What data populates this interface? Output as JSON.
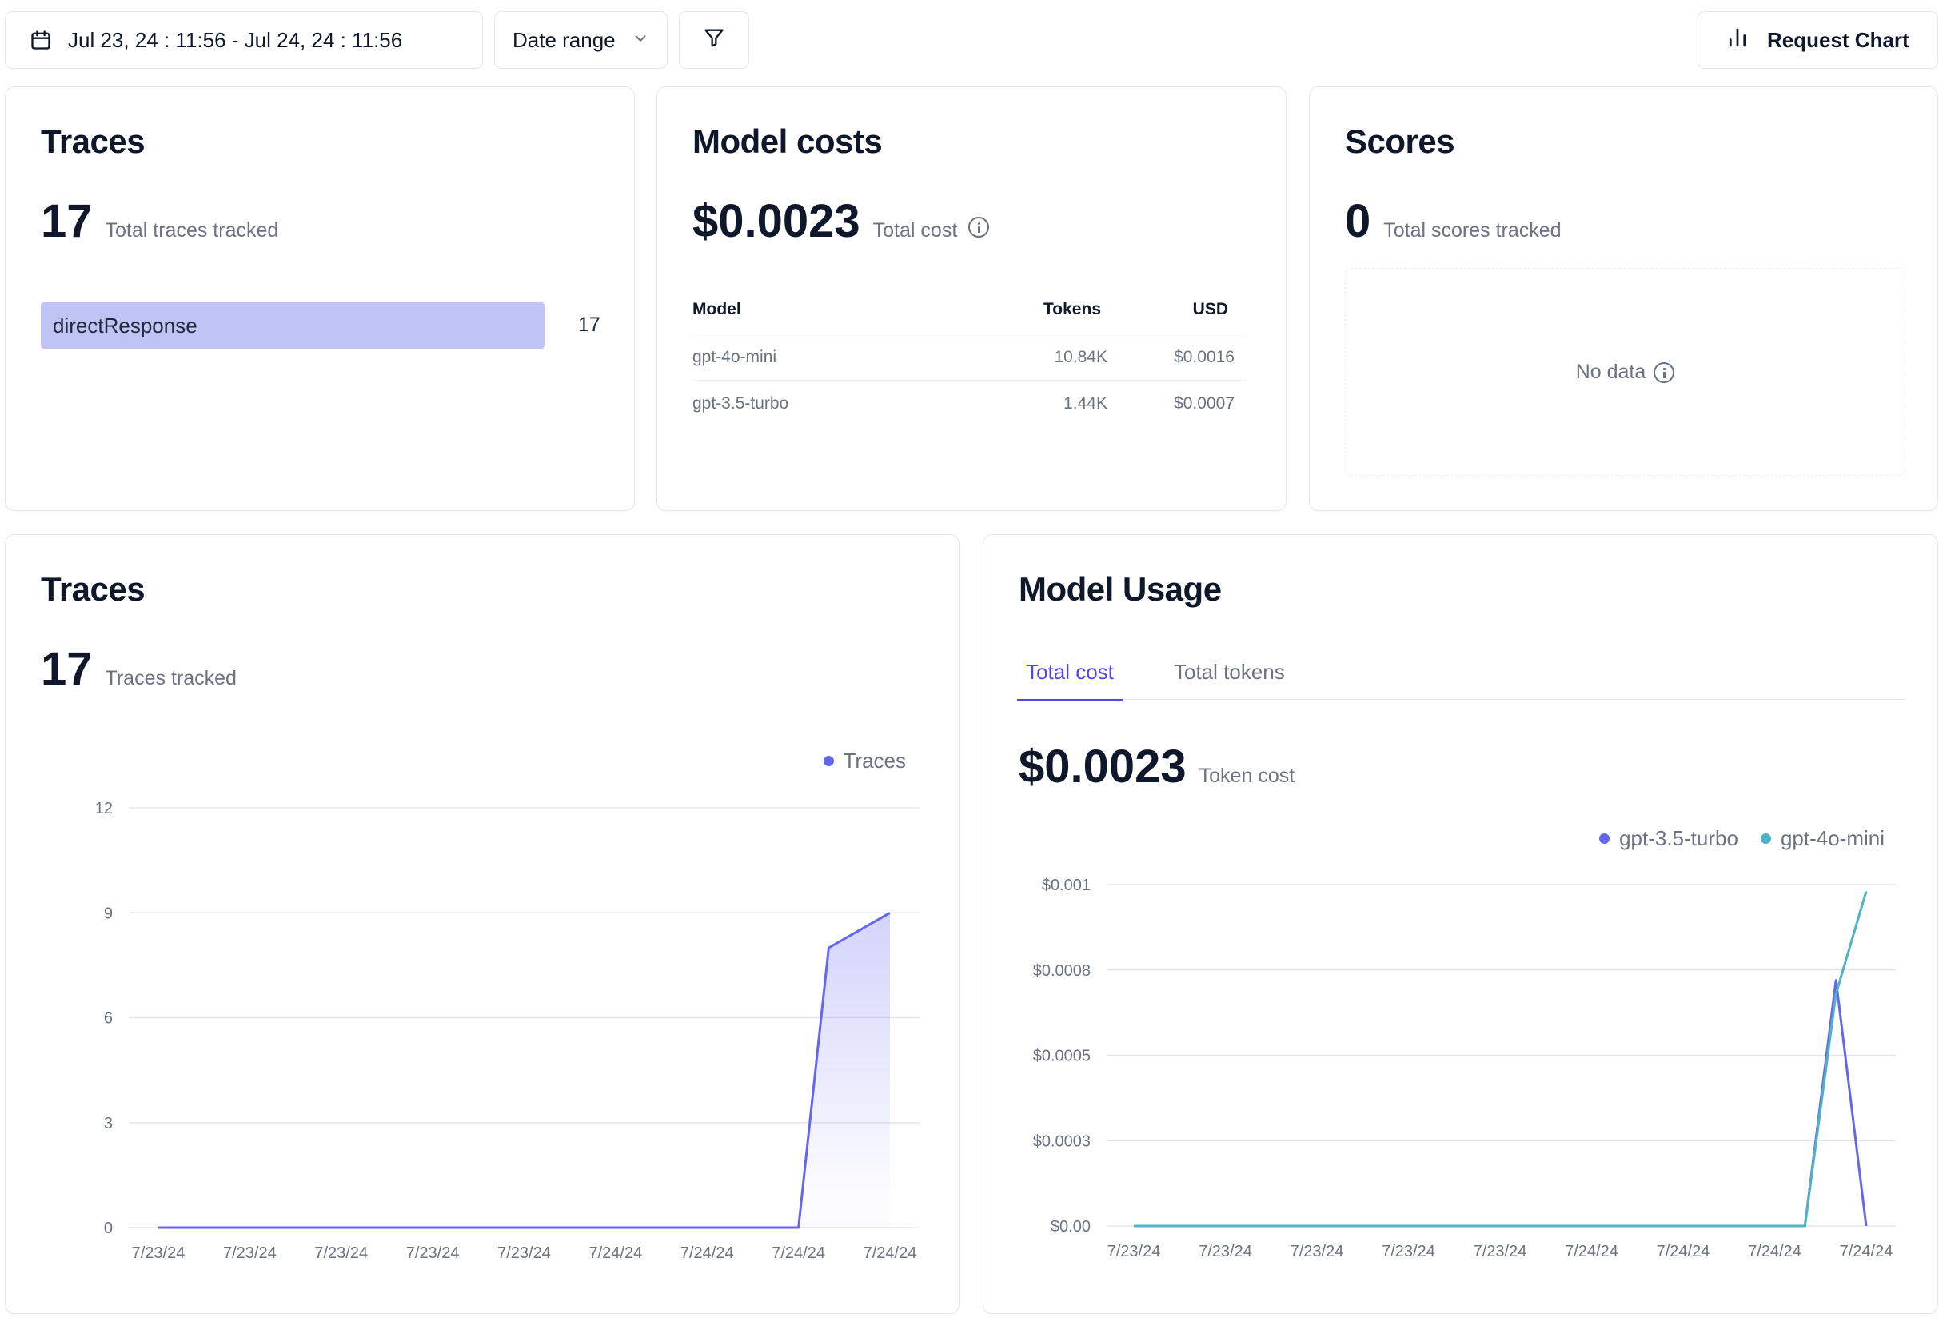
{
  "toolbar": {
    "date_range_value": "Jul 23, 24 : 11:56 - Jul 24, 24 : 11:56",
    "date_range_select": "Date range",
    "request_chart_label": "Request Chart"
  },
  "traces_card": {
    "title": "Traces",
    "total": "17",
    "total_label": "Total traces tracked",
    "bar": {
      "name": "directResponse",
      "value": "17",
      "fraction": 1.0,
      "color": "#c0c4f5"
    }
  },
  "model_costs_card": {
    "title": "Model costs",
    "total": "$0.0023",
    "total_label": "Total cost",
    "columns": [
      "Model",
      "Tokens",
      "USD"
    ],
    "rows": [
      {
        "model": "gpt-4o-mini",
        "tokens": "10.84K",
        "usd": "$0.0016"
      },
      {
        "model": "gpt-3.5-turbo",
        "tokens": "1.44K",
        "usd": "$0.0007"
      }
    ]
  },
  "scores_card": {
    "title": "Scores",
    "total": "0",
    "total_label": "Total scores tracked",
    "empty_text": "No data"
  },
  "traces_chart_card": {
    "title": "Traces",
    "total": "17",
    "total_label": "Traces tracked"
  },
  "model_usage_card": {
    "title": "Model Usage",
    "tabs": [
      {
        "label": "Total cost",
        "active": true
      },
      {
        "label": "Total tokens",
        "active": false
      }
    ],
    "total": "$0.0023",
    "total_label": "Token cost"
  },
  "colors": {
    "accent": "#6366f1",
    "teal": "#4fb3c8",
    "text_muted": "#6b7280",
    "border": "#e5e7eb"
  },
  "chart_data": [
    {
      "type": "area",
      "categories": [
        "7/23/24",
        "7/23/24",
        "7/23/24",
        "7/23/24",
        "7/23/24",
        "7/24/24",
        "7/24/24",
        "7/24/24",
        "7/24/24"
      ],
      "x": [
        0,
        1,
        2,
        3,
        4,
        5,
        6,
        7,
        7.33,
        8
      ],
      "series": [
        {
          "name": "Traces",
          "values": [
            0,
            0,
            0,
            0,
            0,
            0,
            0,
            0,
            8,
            9
          ],
          "color": "#6366f1"
        }
      ],
      "y_ticks": [
        "0",
        "3",
        "6",
        "9",
        "12"
      ],
      "ylim": [
        0,
        12
      ],
      "grid": true,
      "legend": "top-right",
      "title": "",
      "xlabel": "",
      "ylabel": ""
    },
    {
      "type": "line",
      "categories": [
        "7/23/24",
        "7/23/24",
        "7/23/24",
        "7/23/24",
        "7/23/24",
        "7/24/24",
        "7/24/24",
        "7/24/24",
        "7/24/24"
      ],
      "series": [
        {
          "name": "gpt-3.5-turbo",
          "x": [
            0,
            7.33,
            7.67,
            8
          ],
          "values": [
            0,
            0,
            0.00072,
            0
          ],
          "color": "#6366f1"
        },
        {
          "name": "gpt-4o-mini",
          "x": [
            0,
            7.33,
            7.67,
            8
          ],
          "values": [
            0,
            0,
            0.00068,
            0.00098
          ],
          "color": "#4fb3c8"
        }
      ],
      "y_ticks": [
        "$0.00",
        "$0.0003",
        "$0.0005",
        "$0.0008",
        "$0.001"
      ],
      "ylim": [
        0,
        0.001
      ],
      "grid": true,
      "legend": "top-right",
      "title": "",
      "xlabel": "",
      "ylabel": ""
    }
  ]
}
